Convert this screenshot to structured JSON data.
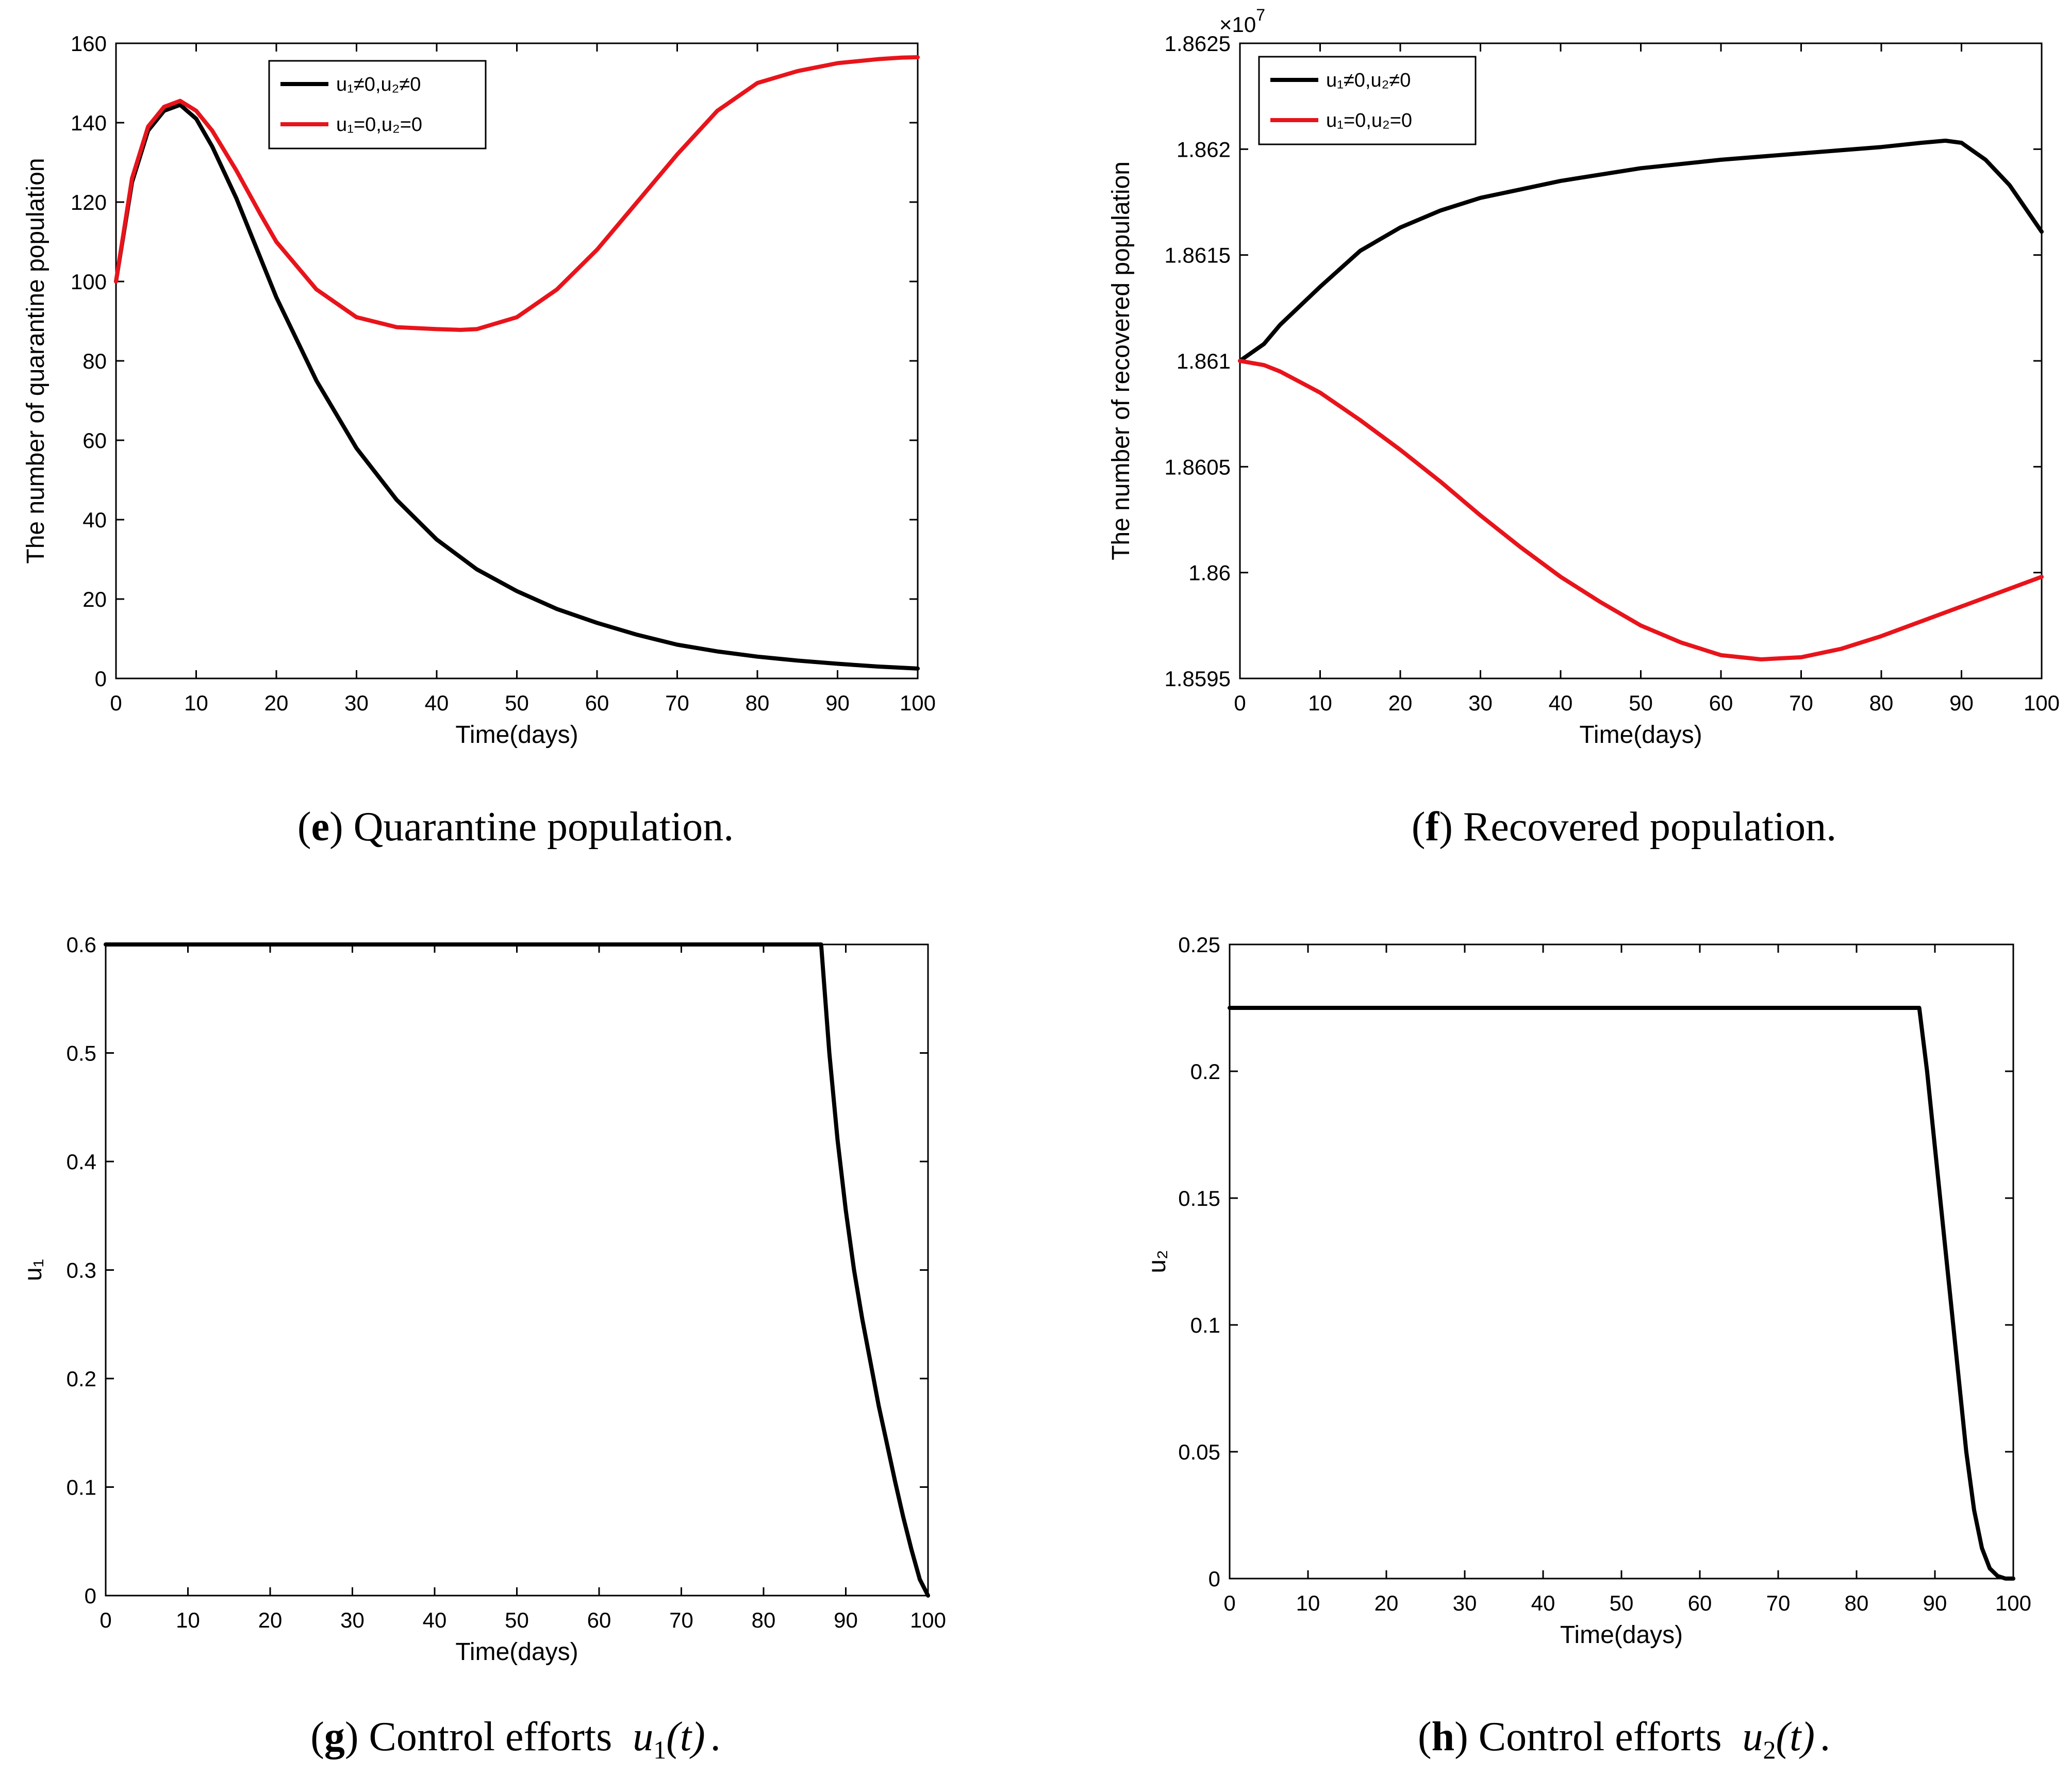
{
  "chart_data": [
    {
      "id": "e",
      "type": "line",
      "xlabel": "Time(days)",
      "ylabel": "The number of quarantine population",
      "xlim": [
        0,
        100
      ],
      "ylim": [
        0,
        160
      ],
      "xticks": [
        "0",
        "10",
        "20",
        "30",
        "40",
        "50",
        "60",
        "70",
        "80",
        "90",
        "100"
      ],
      "yticks": [
        "0",
        "20",
        "40",
        "60",
        "80",
        "100",
        "120",
        "140",
        "160"
      ],
      "legend": {
        "placement": "top-center"
      },
      "caption": {
        "letter": "e",
        "text": "Quarantine population."
      },
      "series": [
        {
          "name": "u₁≠0,u₂≠0",
          "color": "#000000",
          "x": [
            0,
            2,
            4,
            6,
            8,
            10,
            12,
            15,
            18,
            20,
            25,
            30,
            35,
            40,
            45,
            50,
            55,
            60,
            65,
            70,
            75,
            80,
            85,
            90,
            95,
            100
          ],
          "y": [
            100,
            125,
            138,
            143,
            144.5,
            141,
            134,
            121,
            106,
            96,
            75,
            58,
            45,
            35,
            27.5,
            22,
            17.5,
            14,
            11,
            8.5,
            6.8,
            5.5,
            4.5,
            3.7,
            3,
            2.5
          ]
        },
        {
          "name": "u₁=0,u₂=0",
          "color": "#e8141b",
          "x": [
            0,
            2,
            4,
            6,
            8,
            10,
            12,
            15,
            18,
            20,
            25,
            30,
            35,
            40,
            43,
            45,
            50,
            55,
            60,
            65,
            70,
            75,
            80,
            85,
            90,
            95,
            98,
            100
          ],
          "y": [
            100,
            126,
            139,
            144,
            145.5,
            143,
            138,
            128,
            117,
            110,
            98,
            91,
            88.5,
            88,
            87.8,
            88,
            91,
            98,
            108,
            120,
            132,
            143,
            150,
            153,
            155,
            156,
            156.4,
            156.5
          ]
        }
      ]
    },
    {
      "id": "f",
      "type": "line",
      "xlabel": "Time(days)",
      "ylabel": "The number of recovered population",
      "xlim": [
        0,
        100
      ],
      "ylim": [
        1.8595,
        1.8625
      ],
      "exponent_label": "×10",
      "exponent_power": "7",
      "xticks": [
        "0",
        "10",
        "20",
        "30",
        "40",
        "50",
        "60",
        "70",
        "80",
        "90",
        "100"
      ],
      "yticks": [
        "1.8595",
        "1.86",
        "1.8605",
        "1.861",
        "1.8615",
        "1.862",
        "1.8625"
      ],
      "legend": {
        "placement": "top-left"
      },
      "caption": {
        "letter": "f",
        "text": "Recovered population."
      },
      "series": [
        {
          "name": "u₁≠0,u₂≠0",
          "color": "#000000",
          "x": [
            0,
            3,
            5,
            10,
            15,
            20,
            25,
            30,
            35,
            40,
            50,
            60,
            70,
            80,
            85,
            88,
            90,
            93,
            96,
            100
          ],
          "y": [
            1.861,
            1.86108,
            1.86117,
            1.86135,
            1.86152,
            1.86163,
            1.86171,
            1.86177,
            1.86181,
            1.86185,
            1.86191,
            1.86195,
            1.86198,
            1.86201,
            1.86203,
            1.86204,
            1.86203,
            1.86195,
            1.86183,
            1.86161
          ]
        },
        {
          "name": "u₁=0,u₂=0",
          "color": "#e8141b",
          "x": [
            0,
            3,
            5,
            10,
            15,
            20,
            25,
            30,
            35,
            40,
            45,
            50,
            55,
            60,
            65,
            70,
            75,
            80,
            85,
            90,
            95,
            100
          ],
          "y": [
            1.861,
            1.86098,
            1.86095,
            1.86085,
            1.86072,
            1.86058,
            1.86043,
            1.86027,
            1.86012,
            1.85998,
            1.85986,
            1.85975,
            1.85967,
            1.85961,
            1.85959,
            1.8596,
            1.85964,
            1.8597,
            1.85977,
            1.85984,
            1.85991,
            1.85998
          ]
        }
      ]
    },
    {
      "id": "g",
      "type": "line",
      "xlabel": "Time(days)",
      "ylabel": "u₁",
      "xlim": [
        0,
        100
      ],
      "ylim": [
        0,
        0.6
      ],
      "xticks": [
        "0",
        "10",
        "20",
        "30",
        "40",
        "50",
        "60",
        "70",
        "80",
        "90",
        "100"
      ],
      "yticks": [
        "0",
        "0.1",
        "0.2",
        "0.3",
        "0.4",
        "0.5",
        "0.6"
      ],
      "caption": {
        "letter": "g",
        "text": "Control efforts",
        "math": "u",
        "sub": "1",
        "arg": "(t)",
        "end": "."
      },
      "series": [
        {
          "color": "#000000",
          "x": [
            0,
            87,
            88,
            89,
            90,
            91,
            92,
            93,
            94,
            95,
            96,
            97,
            98,
            99,
            100
          ],
          "y": [
            0.6,
            0.6,
            0.5,
            0.42,
            0.355,
            0.3,
            0.255,
            0.215,
            0.175,
            0.14,
            0.105,
            0.072,
            0.042,
            0.015,
            0
          ]
        }
      ]
    },
    {
      "id": "h",
      "type": "line",
      "xlabel": "Time(days)",
      "ylabel": "u₂",
      "xlim": [
        0,
        100
      ],
      "ylim": [
        0,
        0.25
      ],
      "xticks": [
        "0",
        "10",
        "20",
        "30",
        "40",
        "50",
        "60",
        "70",
        "80",
        "90",
        "100"
      ],
      "yticks": [
        "0",
        "0.05",
        "0.1",
        "0.15",
        "0.2",
        "0.25"
      ],
      "caption": {
        "letter": "h",
        "text": "Control efforts",
        "math": "u",
        "sub": "2",
        "arg": "(t)",
        "end": "."
      },
      "series": [
        {
          "color": "#000000",
          "x": [
            0,
            88,
            89,
            90,
            91,
            92,
            93,
            94,
            95,
            96,
            97,
            98,
            99,
            100
          ],
          "y": [
            0.225,
            0.225,
            0.2,
            0.17,
            0.14,
            0.11,
            0.08,
            0.05,
            0.027,
            0.012,
            0.004,
            0.001,
            0,
            0
          ]
        }
      ]
    }
  ]
}
